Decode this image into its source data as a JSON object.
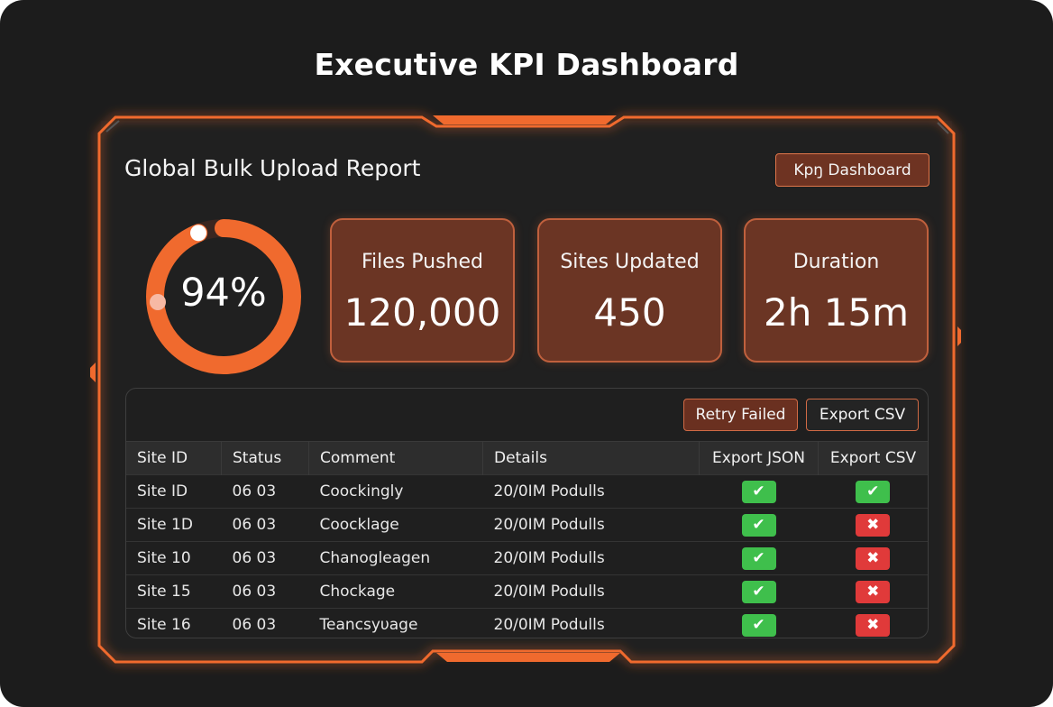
{
  "page": {
    "title": "Executive KPI Dashboard"
  },
  "report": {
    "title": "Global Bulk Upload Report",
    "kpi_button_label": "Kpŋ Dashboard"
  },
  "gauge": {
    "value_text": "94%",
    "fraction": 0.94
  },
  "kpis": [
    {
      "label": "Files Pushed",
      "value": "120,000"
    },
    {
      "label": "Sites Updated",
      "value": "450"
    },
    {
      "label": "Duration",
      "value": "2h 15m"
    }
  ],
  "table": {
    "actions": {
      "retry_label": "Retry Failed",
      "export_label": "Export CSV"
    },
    "columns": [
      "Site ID",
      "Status",
      "Comment",
      "Details",
      "Export JSON",
      "Export CSV"
    ],
    "rows": [
      {
        "site_id": "Site ID",
        "status": "06 03",
        "comment": "Coockingly",
        "details": "20/0IM Podulls",
        "export_json": "ok",
        "export_csv": "ok"
      },
      {
        "site_id": "Site 1D",
        "status": "06 03",
        "comment": "Coocklage",
        "details": "20/0IM Podulls",
        "export_json": "ok",
        "export_csv": "fail"
      },
      {
        "site_id": "Site 10",
        "status": "06 03",
        "comment": "Chanogleagen",
        "details": "20/0IM Podulls",
        "export_json": "ok",
        "export_csv": "fail"
      },
      {
        "site_id": "Site 15",
        "status": "06 03",
        "comment": "Chockage",
        "details": "20/0IM Podulls",
        "export_json": "ok",
        "export_csv": "fail"
      },
      {
        "site_id": "Site 16",
        "status": "06 03",
        "comment": "Teancsyυage",
        "details": "20/0IM Podulls",
        "export_json": "ok",
        "export_csv": "fail"
      }
    ]
  },
  "icons": {
    "ok": "check-icon",
    "fail": "cross-icon"
  },
  "colors": {
    "accent": "#f06a2e",
    "success": "#3fbf4c",
    "error": "#e03a3a",
    "card": "#6b3524"
  }
}
